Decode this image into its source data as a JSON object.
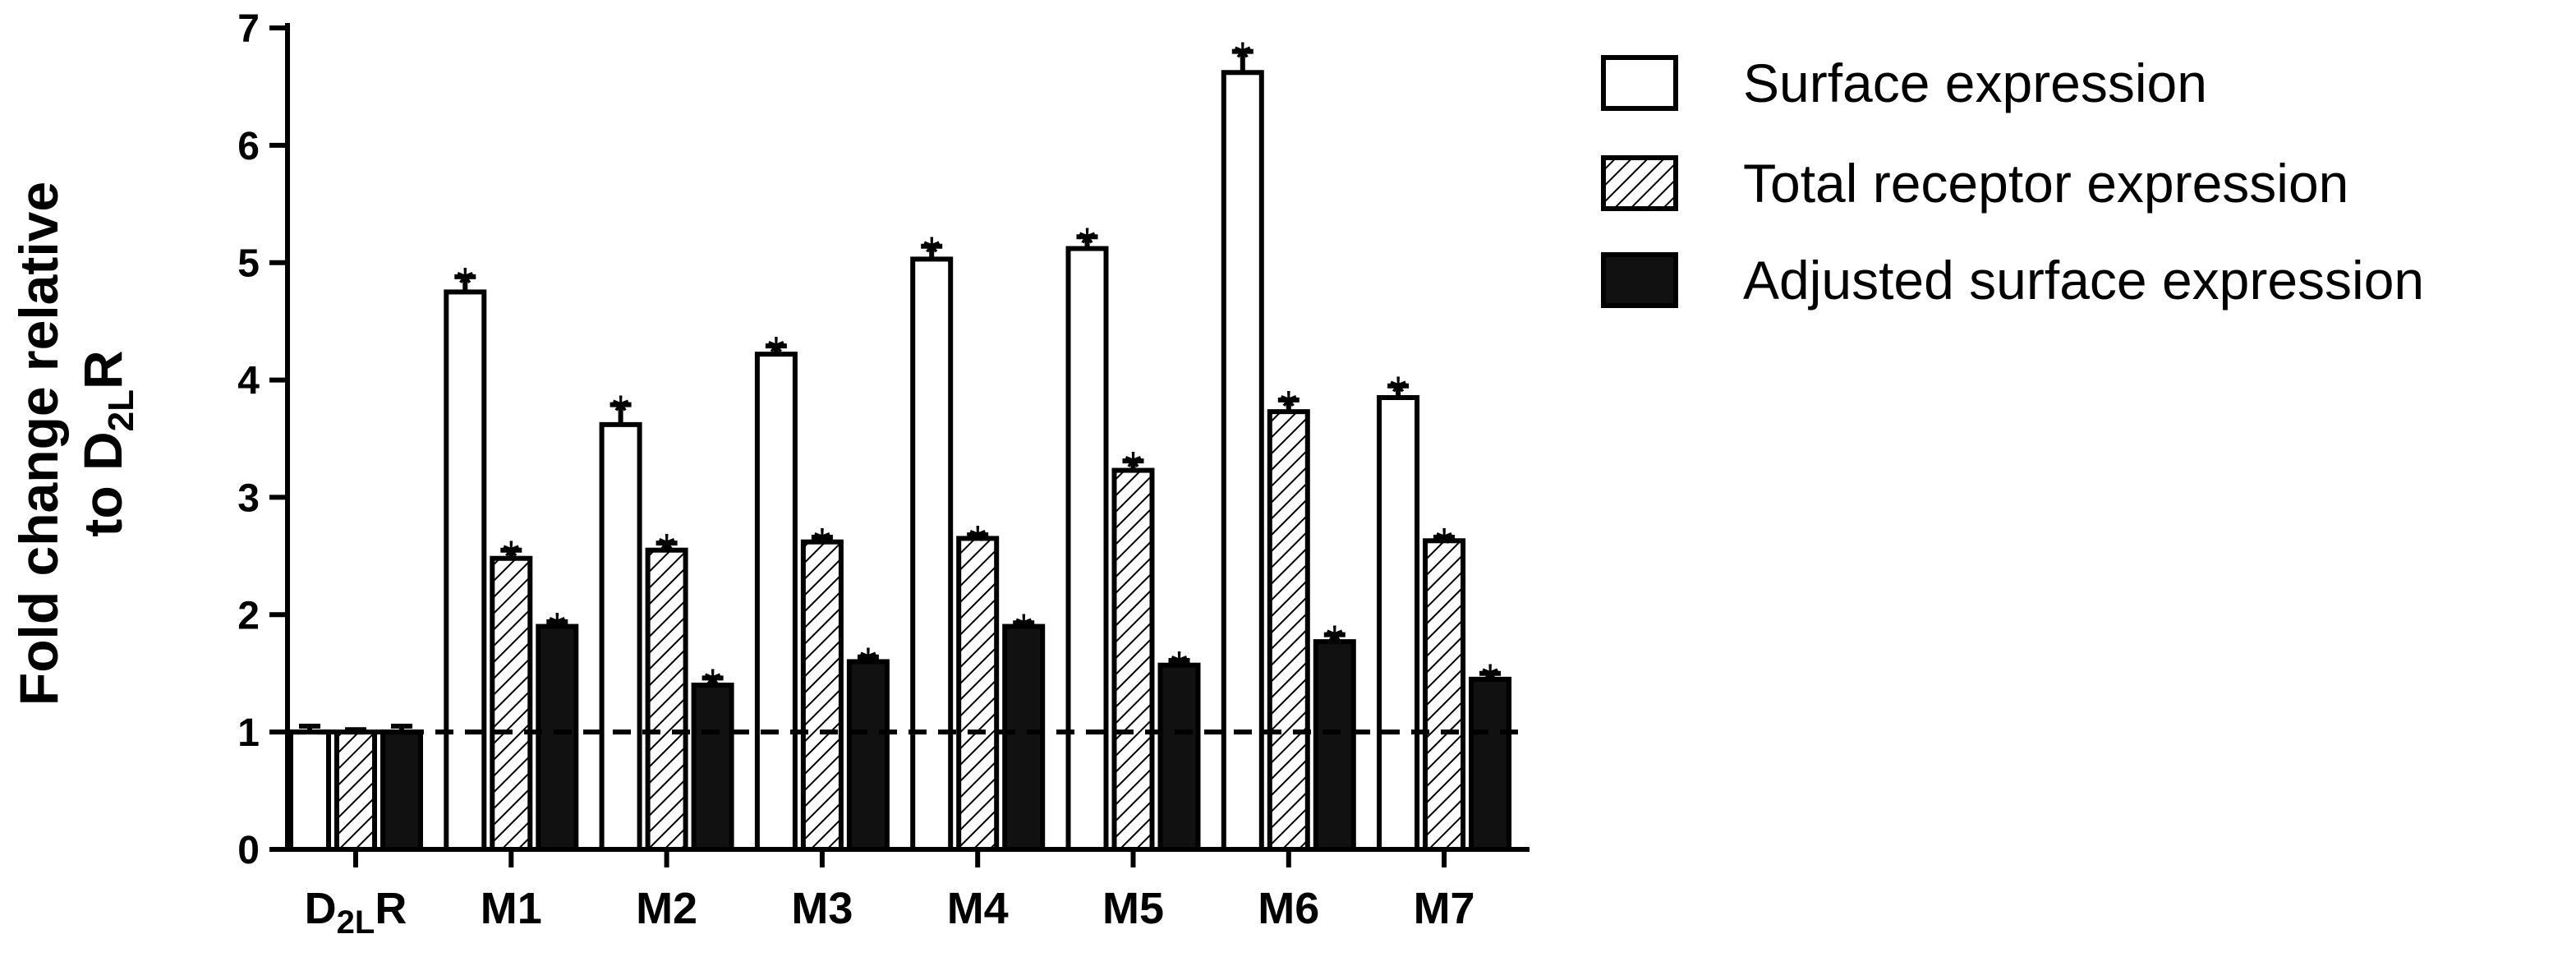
{
  "chart_data": {
    "type": "bar",
    "ylabel": {
      "line1": "Fold change relative",
      "line2_prefix": "to D",
      "line2_sub": "2L",
      "line2_suffix": "R"
    },
    "ylim": [
      0,
      7
    ],
    "yticks": [
      "0",
      "1",
      "2",
      "3",
      "4",
      "5",
      "6",
      "7"
    ],
    "reference_line": 1,
    "categories": [
      {
        "main": "D",
        "sub": "2L",
        "suffix": "R"
      },
      {
        "main": "M1",
        "sub": "",
        "suffix": ""
      },
      {
        "main": "M2",
        "sub": "",
        "suffix": ""
      },
      {
        "main": "M3",
        "sub": "",
        "suffix": ""
      },
      {
        "main": "M4",
        "sub": "",
        "suffix": ""
      },
      {
        "main": "M5",
        "sub": "",
        "suffix": ""
      },
      {
        "main": "M6",
        "sub": "",
        "suffix": ""
      },
      {
        "main": "M7",
        "sub": "",
        "suffix": ""
      }
    ],
    "series": [
      {
        "name": "Surface expression",
        "fill": "white",
        "values": [
          1.0,
          4.75,
          3.62,
          4.22,
          5.03,
          5.12,
          6.62,
          3.85
        ],
        "errors": [
          0.05,
          0.13,
          0.17,
          0.07,
          0.11,
          0.1,
          0.18,
          0.1
        ],
        "significant": [
          false,
          true,
          true,
          true,
          true,
          true,
          true,
          true
        ]
      },
      {
        "name": "Total receptor expression",
        "fill": "hatched",
        "values": [
          1.0,
          2.48,
          2.55,
          2.62,
          2.65,
          3.23,
          3.73,
          2.63
        ],
        "errors": [
          0.02,
          0.07,
          0.06,
          0.04,
          0.03,
          0.08,
          0.1,
          0.03
        ],
        "significant": [
          false,
          true,
          true,
          true,
          true,
          true,
          true,
          true
        ]
      },
      {
        "name": "Adjusted surface expression",
        "fill": "black",
        "values": [
          1.0,
          1.9,
          1.4,
          1.6,
          1.9,
          1.57,
          1.77,
          1.45
        ],
        "errors": [
          0.05,
          0.04,
          0.06,
          0.04,
          0.03,
          0.04,
          0.06,
          0.05
        ],
        "significant": [
          false,
          true,
          true,
          true,
          true,
          true,
          true,
          true
        ]
      }
    ],
    "annotation_symbol": "*",
    "legend_position": "right",
    "grid": false
  }
}
